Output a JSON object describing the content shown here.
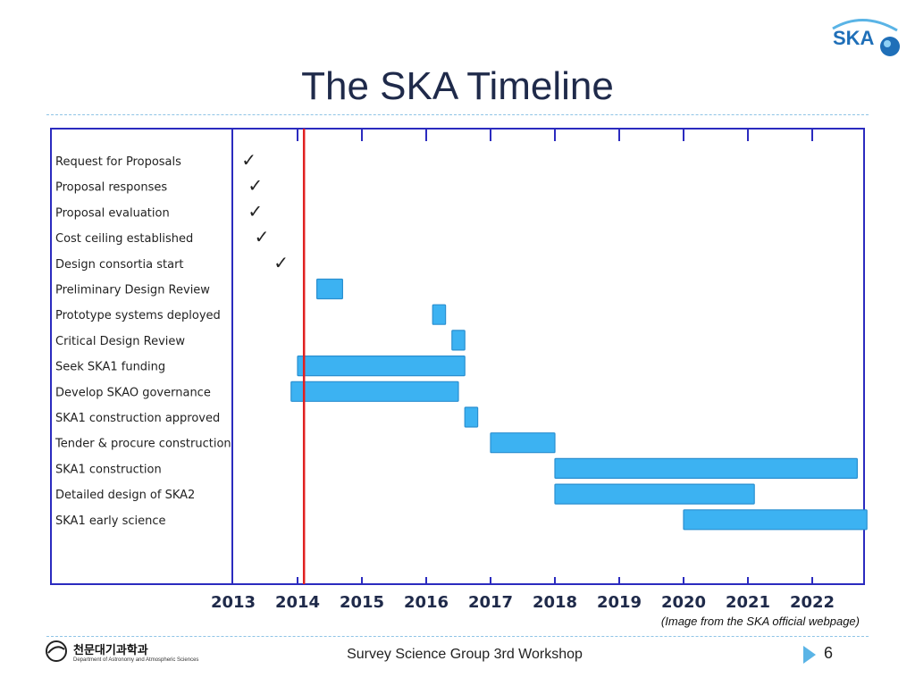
{
  "slide": {
    "title": "The SKA Timeline",
    "caption": "(Image from the SKA official webpage)",
    "footer": "Survey Science Group 3rd Workshop",
    "page_number": "6",
    "ska_logo_text": "SKA",
    "dept_name": "천문대기과학과",
    "dept_sub": "Department of Astronomy and Atmospheric Sciences",
    "colors": {
      "title": "#1f2a4a",
      "frame": "#2b2bbf",
      "bar_fill": "#3cb2f2",
      "bar_stroke": "#2a8fd0",
      "today_line": "#e02020",
      "accent": "#5ab4e6"
    }
  },
  "chart_data": {
    "type": "gantt",
    "title": "",
    "x_ticks": [
      "2013",
      "2014",
      "2015",
      "2016",
      "2017",
      "2018",
      "2019",
      "2020",
      "2021",
      "2022"
    ],
    "xlim": [
      2013,
      2022.85
    ],
    "current_date_marker": 2014.1,
    "tasks": [
      {
        "name": "Request for Proposals",
        "kind": "milestone_done",
        "date": 2013.1
      },
      {
        "name": "Proposal responses",
        "kind": "milestone_done",
        "date": 2013.2
      },
      {
        "name": "Proposal evaluation",
        "kind": "milestone_done",
        "date": 2013.2
      },
      {
        "name": "Cost ceiling established",
        "kind": "milestone_done",
        "date": 2013.3
      },
      {
        "name": "Design consortia start",
        "kind": "milestone_done",
        "date": 2013.6
      },
      {
        "name": "Preliminary Design Review",
        "kind": "bar",
        "start": 2014.3,
        "end": 2014.7
      },
      {
        "name": "Prototype systems deployed",
        "kind": "bar",
        "start": 2016.1,
        "end": 2016.3
      },
      {
        "name": "Critical Design Review",
        "kind": "bar",
        "start": 2016.4,
        "end": 2016.6
      },
      {
        "name": "Seek SKA1 funding",
        "kind": "bar",
        "start": 2014.0,
        "end": 2016.6
      },
      {
        "name": "Develop SKAO governance",
        "kind": "bar",
        "start": 2013.9,
        "end": 2016.5
      },
      {
        "name": "SKA1 construction approved",
        "kind": "bar",
        "start": 2016.6,
        "end": 2016.8
      },
      {
        "name": "Tender & procure construction",
        "kind": "bar",
        "start": 2017.0,
        "end": 2018.0
      },
      {
        "name": "SKA1 construction",
        "kind": "bar",
        "start": 2018.0,
        "end": 2022.7
      },
      {
        "name": "Detailed design of SKA2",
        "kind": "bar",
        "start": 2018.0,
        "end": 2021.1
      },
      {
        "name": "SKA1 early science",
        "kind": "bar",
        "start": 2020.0,
        "end": 2022.85
      }
    ]
  }
}
